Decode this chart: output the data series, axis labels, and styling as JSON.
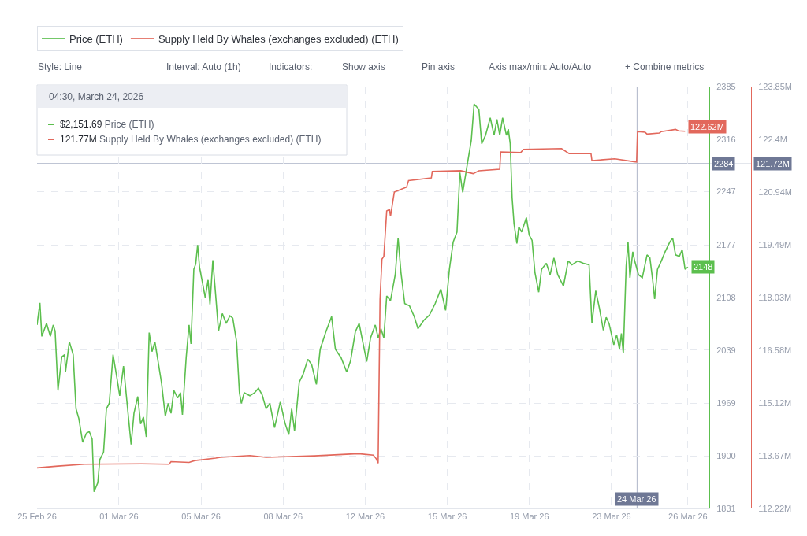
{
  "chart_data": {
    "type": "line",
    "series": [
      {
        "name": "Price (ETH)",
        "color": "#5cbf4e",
        "x": [
          "2026-02-25T21:00",
          "2026-02-26T00:00",
          "2026-02-26T02:00",
          "2026-02-26T07:00",
          "2026-02-26T11:00",
          "2026-02-26T14:00",
          "2026-02-26T16:00",
          "2026-02-26T19:00",
          "2026-02-26T23:00",
          "2026-02-27T02:00",
          "2026-02-27T03:00",
          "2026-02-27T07:00",
          "2026-02-27T11:00",
          "2026-02-27T14:00",
          "2026-02-27T17:00",
          "2026-02-27T21:00",
          "2026-02-28T01:00",
          "2026-02-28T04:00",
          "2026-02-28T07:00",
          "2026-02-28T09:00",
          "2026-02-28T13:00",
          "2026-02-28T15:00",
          "2026-02-28T19:00",
          "2026-02-28T22:00",
          "2026-03-01T01:00",
          "2026-03-01T05:00",
          "2026-03-01T09:00",
          "2026-03-01T12:00",
          "2026-03-01T16:00",
          "2026-03-01T20:00",
          "2026-03-02T00:00",
          "2026-03-02T03:00",
          "2026-03-02T07:00",
          "2026-03-02T10:00",
          "2026-03-02T13:00",
          "2026-03-02T16:00",
          "2026-03-02T19:00",
          "2026-03-02T22:00",
          "2026-03-03T01:00",
          "2026-03-03T04:00",
          "2026-03-03T08:00",
          "2026-03-03T12:00",
          "2026-03-03T15:00",
          "2026-03-03T18:00",
          "2026-03-03T21:00",
          "2026-03-04T01:00",
          "2026-03-04T04:00",
          "2026-03-04T06:00",
          "2026-03-04T10:00",
          "2026-03-04T13:00",
          "2026-03-04T15:00",
          "2026-03-04T18:00",
          "2026-03-04T20:00",
          "2026-03-04T22:00",
          "2026-03-05T00:00",
          "2026-03-05T03:00",
          "2026-03-05T06:00",
          "2026-03-05T09:00",
          "2026-03-05T11:00",
          "2026-03-05T14:00",
          "2026-03-05T17:00",
          "2026-03-05T20:00",
          "2026-03-06T00:00",
          "2026-03-06T04:00",
          "2026-03-06T08:00",
          "2026-03-06T11:00",
          "2026-03-06T15:00",
          "2026-03-06T18:00",
          "2026-03-06T20:00",
          "2026-03-06T23:00",
          "2026-03-07T05:00",
          "2026-03-07T10:00",
          "2026-03-07T14:00",
          "2026-03-07T18:00",
          "2026-03-07T22:00",
          "2026-03-08T02:00",
          "2026-03-08T07:00",
          "2026-03-08T13:00",
          "2026-03-08T18:00",
          "2026-03-08T22:00",
          "2026-03-09T01:00",
          "2026-03-09T04:00",
          "2026-03-09T09:00",
          "2026-03-09T13:00",
          "2026-03-09T18:00",
          "2026-03-09T22:00",
          "2026-03-10T03:00",
          "2026-03-10T07:00",
          "2026-03-10T13:00",
          "2026-03-10T19:00",
          "2026-03-10T23:00",
          "2026-03-11T05:00",
          "2026-03-11T11:00",
          "2026-03-11T15:00",
          "2026-03-11T20:00",
          "2026-03-12T00:00",
          "2026-03-12T03:00",
          "2026-03-12T08:00",
          "2026-03-12T12:00",
          "2026-03-12T17:00",
          "2026-03-12T20:00",
          "2026-03-12T23:00",
          "2026-03-13T02:00",
          "2026-03-13T05:00",
          "2026-03-13T09:00",
          "2026-03-13T14:00",
          "2026-03-13T17:00",
          "2026-03-13T20:00",
          "2026-03-14T00:00",
          "2026-03-14T05:00",
          "2026-03-14T10:00",
          "2026-03-14T14:00",
          "2026-03-14T20:00",
          "2026-03-15T02:00",
          "2026-03-15T08:00",
          "2026-03-15T14:00",
          "2026-03-15T19:00",
          "2026-03-15T23:00",
          "2026-03-16T03:00",
          "2026-03-16T07:00",
          "2026-03-16T10:00",
          "2026-03-16T13:00",
          "2026-03-16T18:00",
          "2026-03-16T22:00",
          "2026-03-17T01:00",
          "2026-03-17T06:00",
          "2026-03-17T09:00",
          "2026-03-17T13:00",
          "2026-03-17T18:00",
          "2026-03-17T22:00",
          "2026-03-18T01:00",
          "2026-03-18T04:00",
          "2026-03-18T07:00",
          "2026-03-18T11:00",
          "2026-03-18T13:00",
          "2026-03-18T15:00",
          "2026-03-18T17:00",
          "2026-03-18T19:00",
          "2026-03-18T22:00",
          "2026-03-19T00:00",
          "2026-03-19T03:00",
          "2026-03-19T08:00",
          "2026-03-19T11:00",
          "2026-03-19T14:00",
          "2026-03-19T17:00",
          "2026-03-19T21:00",
          "2026-03-20T00:00",
          "2026-03-20T05:00",
          "2026-03-20T09:00",
          "2026-03-20T13:00",
          "2026-03-20T17:00",
          "2026-03-20T23:00",
          "2026-03-21T04:00",
          "2026-03-21T08:00",
          "2026-03-21T14:00",
          "2026-03-21T20:00",
          "2026-03-22T02:00",
          "2026-03-22T05:00",
          "2026-03-22T09:00",
          "2026-03-22T13:00",
          "2026-03-22T17:00",
          "2026-03-22T20:00",
          "2026-03-22T23:00",
          "2026-03-23T04:00",
          "2026-03-23T07:00",
          "2026-03-23T10:00",
          "2026-03-23T12:00",
          "2026-03-23T14:00",
          "2026-03-23T17:00",
          "2026-03-23T19:00",
          "2026-03-23T21:00",
          "2026-03-24T00:00",
          "2026-03-24T02:00",
          "2026-03-24T06:00",
          "2026-03-24T10:00",
          "2026-03-24T15:00",
          "2026-03-24T18:00",
          "2026-03-24T21:00",
          "2026-03-24T23:00",
          "2026-03-25T02:00",
          "2026-03-25T06:00",
          "2026-03-25T10:00",
          "2026-03-25T15:00",
          "2026-03-25T18:00",
          "2026-03-25T21:00",
          "2026-03-26T01:00",
          "2026-03-26T04:00",
          "2026-03-26T07:00",
          "2026-03-26T10:00"
        ],
        "values": [
          2072,
          2101,
          2057,
          2074,
          2057,
          2072,
          2064,
          1986,
          2030,
          2033,
          2011,
          2050,
          2033,
          1962,
          1949,
          1918,
          1930,
          1932,
          1922,
          1853,
          1865,
          1895,
          1905,
          1962,
          1969,
          2033,
          2003,
          1979,
          2018,
          1966,
          1915,
          1956,
          1978,
          1942,
          1951,
          1925,
          2062,
          2037,
          2050,
          2027,
          1996,
          1952,
          1969,
          1956,
          1986,
          1976,
          1983,
          1954,
          2030,
          2072,
          2047,
          2145,
          2152,
          2177,
          2148,
          2128,
          2108,
          2131,
          2099,
          2157,
          2111,
          2064,
          2087,
          2074,
          2084,
          2081,
          2050,
          1983,
          1969,
          1983,
          1979,
          1983,
          1989,
          1980,
          1962,
          1969,
          1937,
          1971,
          1943,
          1928,
          1962,
          1933,
          1997,
          2007,
          2027,
          2020,
          1994,
          2040,
          2063,
          2083,
          2040,
          2029,
          2010,
          2025,
          2063,
          2074,
          2055,
          2024,
          2055,
          2072,
          2055,
          2067,
          2055,
          2110,
          2104,
          2138,
          2186,
          2141,
          2100,
          2097,
          2083,
          2067,
          2078,
          2085,
          2100,
          2119,
          2091,
          2145,
          2181,
          2194,
          2272,
          2246,
          2284,
          2314,
          2362,
          2355,
          2310,
          2321,
          2344,
          2321,
          2342,
          2321,
          2344,
          2321,
          2329,
          2310,
          2239,
          2205,
          2179,
          2201,
          2194,
          2213,
          2190,
          2183,
          2141,
          2115,
          2145,
          2153,
          2138,
          2160,
          2138,
          2123,
          2156,
          2151,
          2156,
          2153,
          2151,
          2074,
          2117,
          2093,
          2065,
          2082,
          2074,
          2046,
          2059,
          2040,
          2061,
          2035,
          2149,
          2181,
          2134,
          2168,
          2156,
          2138,
          2134,
          2164,
          2160,
          2130,
          2106,
          2145,
          2156,
          2168,
          2181,
          2186,
          2164,
          2162,
          2171,
          2145,
          2148
        ],
        "value_labels": [
          null,
          null,
          null,
          null,
          null,
          null,
          null,
          null,
          null,
          null,
          null,
          null,
          null,
          null,
          null,
          null,
          null,
          null,
          null,
          null,
          null,
          null,
          null,
          null,
          null,
          null,
          null,
          null,
          null,
          null,
          null,
          null,
          null,
          null,
          null,
          null,
          null,
          null,
          null,
          null,
          null,
          null,
          null,
          null,
          null,
          null,
          null,
          null,
          null,
          null,
          null,
          null,
          null,
          null,
          null,
          null,
          null,
          null,
          null,
          null,
          null,
          null,
          null,
          null,
          null,
          null,
          null,
          null,
          null,
          null,
          null,
          null,
          null,
          null,
          null,
          null,
          null,
          null,
          null,
          null,
          null,
          null,
          null,
          null,
          null,
          null,
          null,
          null,
          null,
          null,
          null,
          null,
          null,
          null,
          null,
          null,
          null,
          null,
          null,
          null,
          null,
          null,
          null,
          null,
          null,
          null,
          null,
          null,
          null,
          null,
          null,
          null,
          null,
          null,
          null,
          null,
          null,
          null,
          null,
          null,
          null,
          null,
          null,
          null,
          null,
          null,
          null,
          null,
          null,
          null,
          null,
          null,
          null,
          null,
          null,
          null,
          null,
          null,
          null,
          null,
          null,
          null,
          null,
          null,
          null,
          null,
          null,
          null,
          null,
          null,
          null,
          null,
          null,
          null,
          null,
          null,
          null,
          null,
          null,
          null,
          null,
          null,
          null,
          null,
          null,
          null,
          null,
          null,
          null,
          null,
          null,
          null,
          null,
          null,
          null,
          null,
          null,
          null,
          null,
          null,
          null,
          null,
          null,
          null,
          null,
          null,
          null,
          null,
          "2148"
        ]
      },
      {
        "name": "Supply Held By Whales (exchanges excluded) (ETH)",
        "color": "#e2685c",
        "axis": "y2",
        "x": [
          "2026-02-25T21:00",
          "2026-02-26T19:00",
          "2026-02-27T23:00",
          "2026-03-02T11:00",
          "2026-03-03T16:00",
          "2026-03-03T18:00",
          "2026-03-04T13:00",
          "2026-03-04T19:00",
          "2026-03-05T17:00",
          "2026-03-05T22:00",
          "2026-03-07T05:00",
          "2026-03-07T22:00",
          "2026-03-10T01:00",
          "2026-03-11T23:00",
          "2026-03-12T15:00",
          "2026-03-12T18:00",
          "2026-03-12T20:00",
          "2026-03-12T22:00",
          "2026-03-13T00:00",
          "2026-03-13T02:00",
          "2026-03-13T05:00",
          "2026-03-13T08:00",
          "2026-03-13T09:00",
          "2026-03-13T13:00",
          "2026-03-14T02:00",
          "2026-03-14T04:00",
          "2026-03-15T04:00",
          "2026-03-15T05:00",
          "2026-03-16T11:00",
          "2026-03-17T00:00",
          "2026-03-17T06:00",
          "2026-03-18T04:00",
          "2026-03-18T05:00",
          "2026-03-19T02:00",
          "2026-03-19T05:00",
          "2026-03-20T21:00",
          "2026-03-21T05:00",
          "2026-03-22T04:00",
          "2026-03-22T05:00",
          "2026-03-23T05:00",
          "2026-03-24T01:00",
          "2026-03-24T04:00",
          "2026-03-24T05:00",
          "2026-03-24T13:00",
          "2026-03-24T15:00",
          "2026-03-25T04:00",
          "2026-03-25T06:00",
          "2026-03-25T21:00",
          "2026-03-26T00:00",
          "2026-03-26T07:00"
        ],
        "values": [
          113.34,
          113.39,
          113.44,
          113.45,
          113.44,
          113.51,
          113.49,
          113.54,
          113.61,
          113.63,
          113.68,
          113.63,
          113.67,
          113.73,
          113.69,
          113.59,
          113.47,
          117.99,
          119.09,
          119.17,
          120.42,
          120.46,
          120.27,
          120.94,
          121.08,
          121.26,
          121.33,
          121.51,
          121.53,
          121.45,
          121.53,
          121.57,
          122.05,
          122.03,
          122.12,
          122.14,
          122.0,
          122.0,
          121.81,
          121.86,
          121.78,
          121.77,
          122.61,
          122.59,
          122.54,
          122.57,
          122.61,
          122.67,
          122.63,
          122.62
        ],
        "value_labels": [
          null,
          null,
          null,
          null,
          null,
          null,
          null,
          null,
          null,
          null,
          null,
          null,
          null,
          null,
          null,
          null,
          null,
          null,
          null,
          null,
          null,
          null,
          null,
          null,
          null,
          null,
          null,
          null,
          null,
          null,
          null,
          null,
          null,
          null,
          null,
          null,
          null,
          null,
          null,
          null,
          null,
          null,
          null,
          null,
          null,
          null,
          null,
          null,
          null,
          "122.62M"
        ]
      }
    ],
    "xlim": [
      "2026-02-25T21:00",
      "2026-03-27T08:30"
    ],
    "xticks": [
      {
        "value": "2026-02-25T21:00",
        "label": "25 Feb 26"
      },
      {
        "value": "2026-03-01T11:12",
        "label": "01 Mar 26"
      },
      {
        "value": "2026-03-05T01:36",
        "label": "05 Mar 26"
      },
      {
        "value": "2026-03-08T16:00",
        "label": "08 Mar 26"
      },
      {
        "value": "2026-03-12T06:24",
        "label": "12 Mar 26"
      },
      {
        "value": "2026-03-15T20:48",
        "label": "15 Mar 26"
      },
      {
        "value": "2026-03-19T11:12",
        "label": "19 Mar 26"
      },
      {
        "value": "2026-03-23T01:36",
        "label": "23 Mar 26"
      },
      {
        "value": "2026-03-26T10:00",
        "label": "26 Mar 26"
      }
    ],
    "ylim": [
      1831,
      2385
    ],
    "yticks": [
      1831,
      1900,
      1969,
      2039,
      2108,
      2177,
      2247,
      2316,
      2385
    ],
    "y2lim": [
      112.22,
      123.85
    ],
    "y2ticks": [
      {
        "value": 112.22,
        "label": "112.22M"
      },
      {
        "value": 113.67,
        "label": "113.67M"
      },
      {
        "value": 115.12,
        "label": "115.12M"
      },
      {
        "value": 116.58,
        "label": "116.58M"
      },
      {
        "value": 118.03,
        "label": "118.03M"
      },
      {
        "value": 119.49,
        "label": "119.49M"
      },
      {
        "value": 120.94,
        "label": "120.94M"
      },
      {
        "value": 122.4,
        "label": "122.4M"
      },
      {
        "value": 123.85,
        "label": "123.85M"
      }
    ],
    "ref_lines": [
      {
        "axis": "x",
        "value": "2026-03-24T04:30",
        "label": "24 Mar 26",
        "color": "#aeb5c8"
      },
      {
        "axis": "y",
        "value": 2284,
        "label": "2284",
        "color": "#aeb5c8"
      },
      {
        "axis": "y2",
        "value": 121.72,
        "label": "121.72M",
        "color": "#aeb5c8"
      }
    ],
    "annotations": [
      "Style: Line",
      "Interval: Auto (1h)",
      "Indicators:",
      "Show axis",
      "Pin axis",
      "Axis max/min: Auto/Auto",
      "+ Combine metrics",
      "04:30, March 24, 2026",
      "$2,151.69 Price (ETH)",
      "121.77M Supply Held By Whales (exchanges excluded) (ETH)"
    ],
    "grid": true,
    "legend": "top left"
  }
}
